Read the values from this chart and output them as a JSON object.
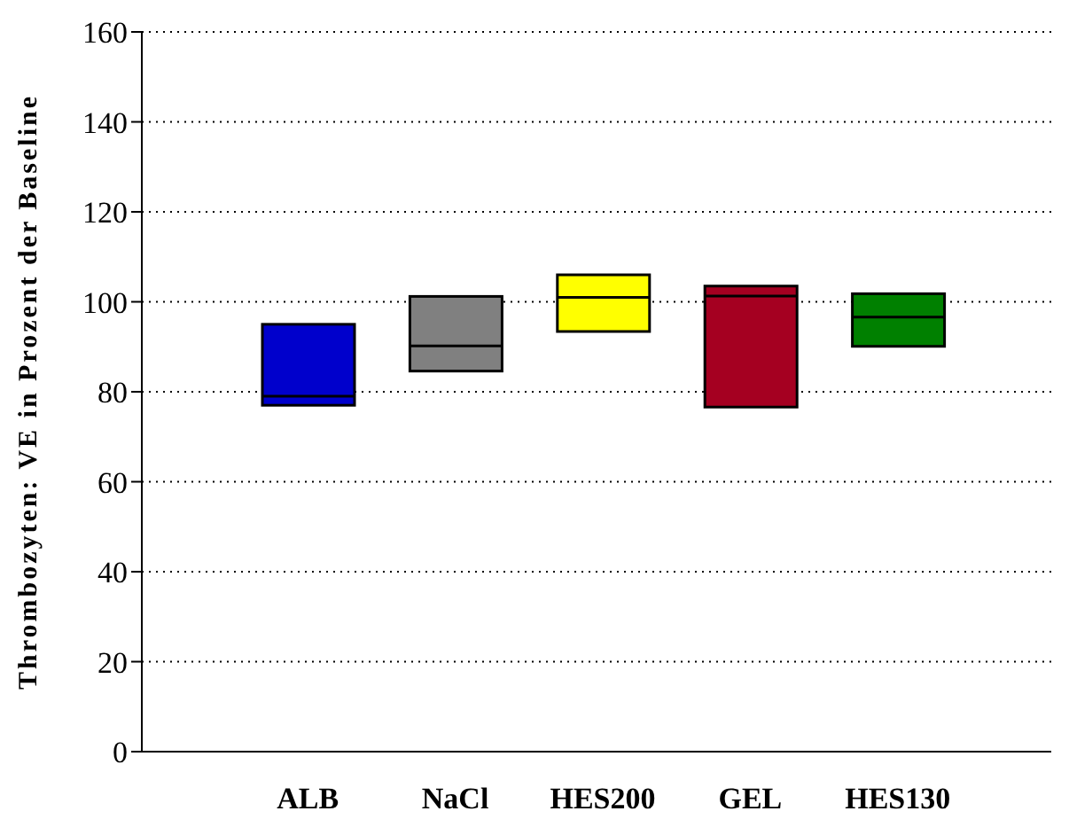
{
  "chart_data": {
    "type": "box",
    "ylabel": "Thrombozyten: VE in Prozent der Baseline",
    "categories": [
      "ALB",
      "NaCl",
      "HES200",
      "GEL",
      "HES130"
    ],
    "colors": [
      "#0000cc",
      "#808080",
      "#ffff00",
      "#a50021",
      "#008000"
    ],
    "boxes": [
      {
        "low": 77,
        "q1": 77,
        "median": 79,
        "q3": 95,
        "high": 95
      },
      {
        "low": 84.6,
        "q1": 84.6,
        "median": 90.2,
        "q3": 101.2,
        "high": 101.2
      },
      {
        "low": 93.4,
        "q1": 93.4,
        "median": 101,
        "q3": 106,
        "high": 106
      },
      {
        "low": 76.6,
        "q1": 76.6,
        "median": 101.3,
        "q3": 103.5,
        "high": 103.5
      },
      {
        "low": 90.1,
        "q1": 90.1,
        "median": 96.6,
        "q3": 101.8,
        "high": 101.8
      }
    ],
    "ylim": [
      0,
      160
    ],
    "yticks": [
      0,
      20,
      40,
      60,
      80,
      100,
      120,
      140,
      160
    ],
    "grid": "y"
  }
}
